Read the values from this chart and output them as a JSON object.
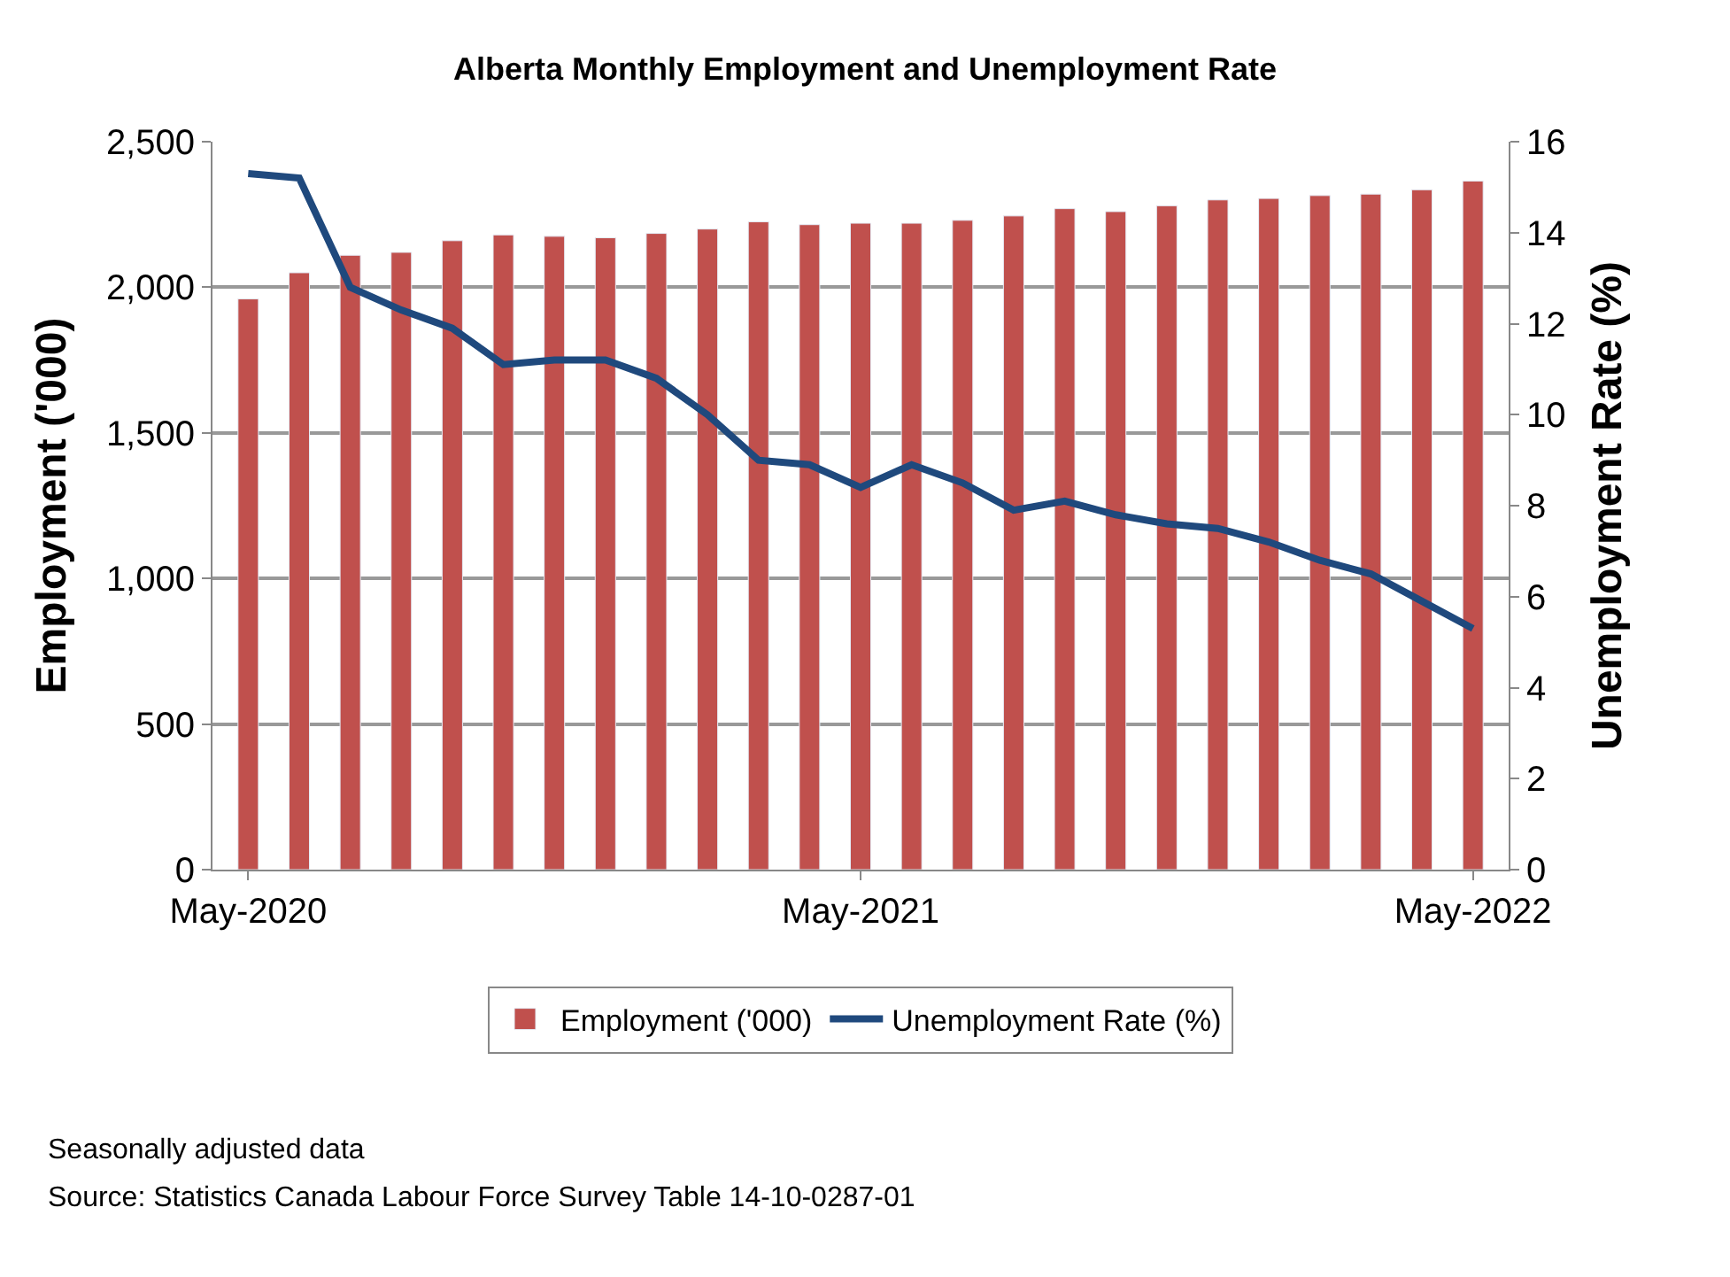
{
  "chart_data": {
    "type": "bar",
    "title": "Alberta Monthly Employment and Unemployment Rate",
    "ylabel": "Employment ('000)",
    "y2label": "Unemployment Rate (%)",
    "categories": [
      "May-2020",
      null,
      null,
      null,
      null,
      null,
      null,
      null,
      null,
      null,
      null,
      null,
      "May-2021",
      null,
      null,
      null,
      null,
      null,
      null,
      null,
      null,
      null,
      null,
      null,
      "May-2022"
    ],
    "series": [
      {
        "name": "Employment ('000)",
        "color": "#c0504d",
        "values": [
          1960,
          2050,
          2110,
          2120,
          2160,
          2180,
          2175,
          2170,
          2185,
          2200,
          2225,
          2215,
          2220,
          2220,
          2230,
          2245,
          2270,
          2260,
          2280,
          2300,
          2305,
          2315,
          2320,
          2335,
          2365
        ]
      },
      {
        "name": "Unemployment Rate (%)",
        "type": "line",
        "axis": "y2",
        "color": "#1f497d",
        "line_style": "solid",
        "marker": "none",
        "values": [
          15.3,
          15.2,
          12.8,
          12.3,
          11.9,
          11.1,
          11.2,
          11.2,
          10.8,
          10.0,
          9.0,
          8.9,
          8.4,
          8.9,
          8.5,
          7.9,
          8.1,
          7.8,
          7.6,
          7.5,
          7.2,
          6.8,
          6.5,
          5.9,
          5.3
        ]
      }
    ],
    "ylim": [
      0,
      2500
    ],
    "yticks": [
      0,
      {
        "value": 500,
        "label": "500"
      },
      {
        "value": 1000,
        "label": "1,000"
      },
      {
        "value": 1500,
        "label": "1,500"
      },
      {
        "value": 2000,
        "label": "2,000"
      },
      {
        "value": 2500,
        "label": "2,500"
      }
    ],
    "y2lim": [
      0,
      16
    ],
    "y2ticks": [
      0,
      2,
      4,
      6,
      8,
      10,
      12,
      14,
      16
    ],
    "grid": "y",
    "legend": "bottom",
    "annotations": [
      "Seasonally adjusted data",
      "Source: Statistics Canada Labour Force Survey Table 14-10-0287-01"
    ]
  }
}
